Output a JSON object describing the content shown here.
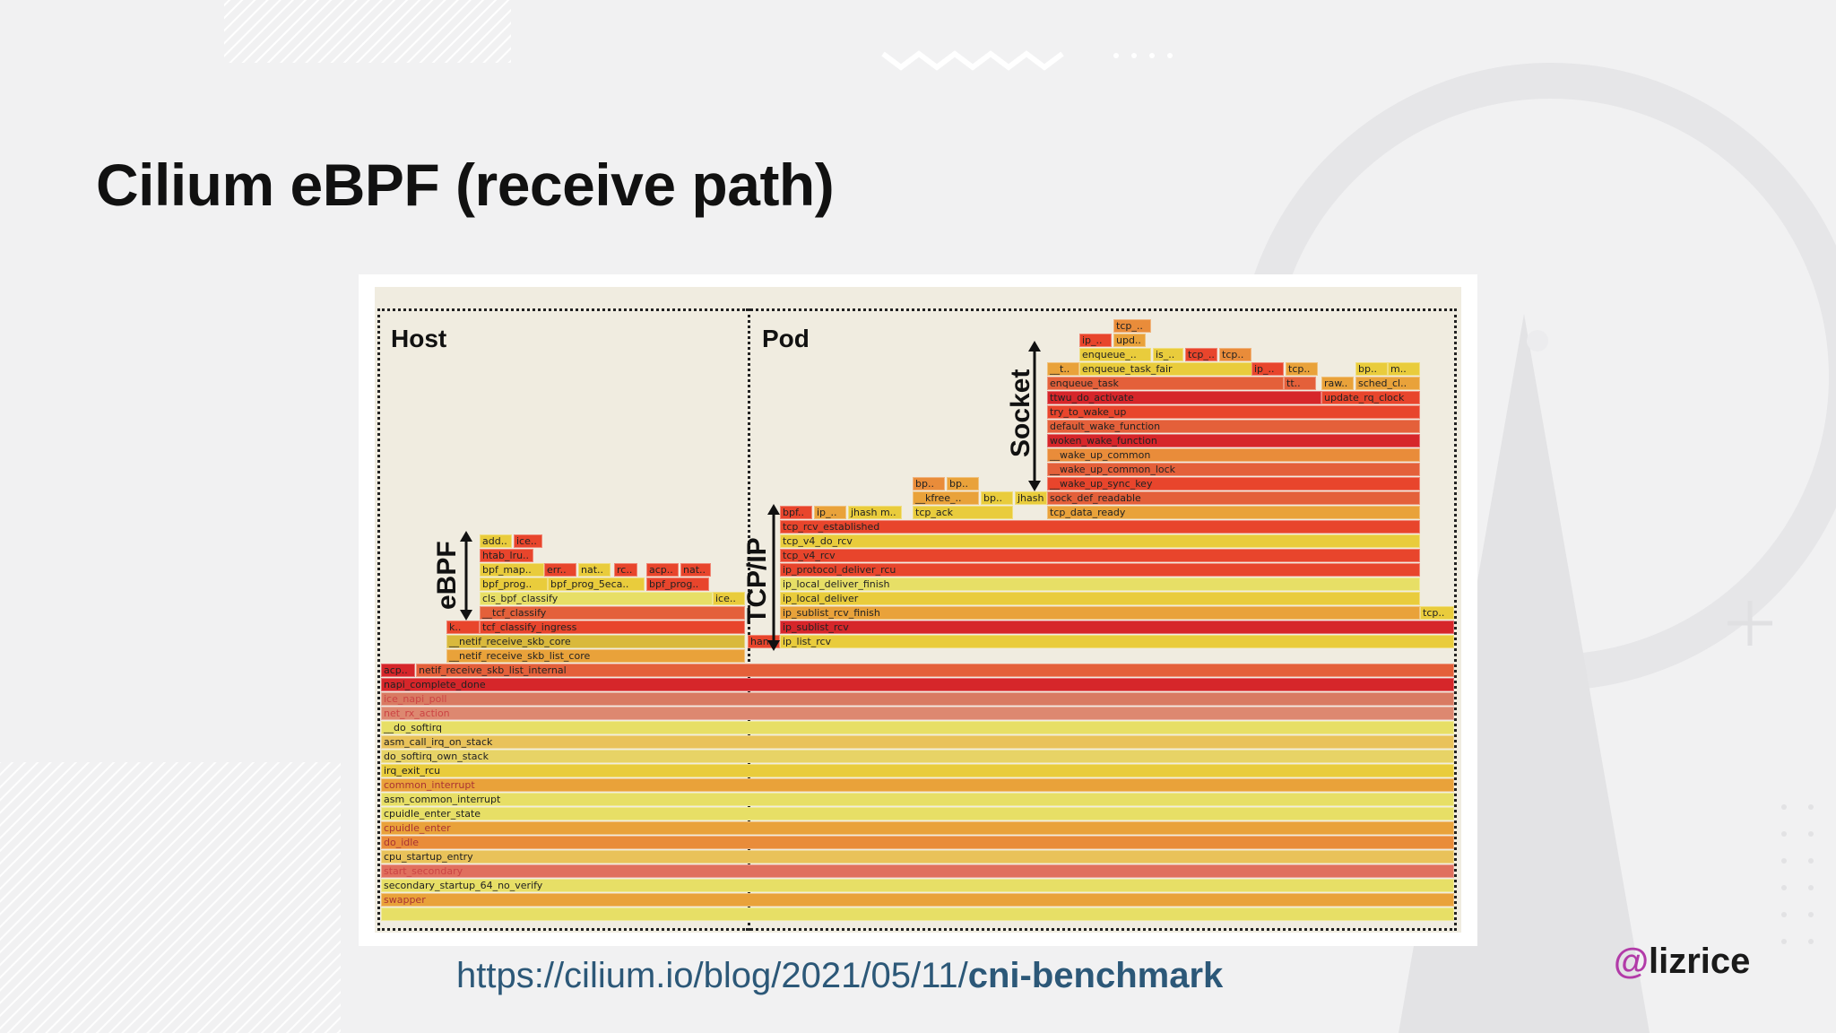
{
  "slide": {
    "title": "Cilium eBPF (receive path)",
    "url_prefix": "https://cilium.io/blog/2021/05/11/",
    "url_bold": "cni-benchmark",
    "handle_at": "@",
    "handle_name": "lizrice"
  },
  "diagram": {
    "region_host": "Host",
    "region_pod": "Pod",
    "label_ebpf": "eBPF",
    "label_tcpip": "TCP/IP",
    "label_socket": "Socket",
    "colors": {
      "dark_red": "#d6262a",
      "red": "#e8452c",
      "orange_red": "#e4603a",
      "orange": "#e98c3a",
      "amber": "#e9a23a",
      "yellow": "#e9cc3c",
      "pale_yellow": "#e7df66",
      "salmon": "#d97a62",
      "pink": "#e0705e"
    }
  },
  "host_bars": [
    "acp..",
    "netif_receive_skb_list_internal",
    "napi_complete_done",
    "ice_napi_poll",
    "net_rx_action",
    "__do_softirq",
    "asm_call_irq_on_stack",
    "do_softirq_own_stack",
    "irq_exit_rcu",
    "common_interrupt",
    "asm_common_interrupt",
    "cpuidle_enter_state",
    "cpuidle_enter",
    "do_idle",
    "cpu_startup_entry",
    "start_secondary",
    "secondary_startup_64_no_verify",
    "swapper"
  ],
  "host_stack": [
    "add..",
    "ice..",
    "htab_lru..",
    "bpf_map..",
    "err..",
    "nat..",
    "rc..",
    "acp..",
    "nat..",
    "bpf_prog..",
    "bpf_prog_5eca..",
    "bpf_prog..",
    "cls_bpf_classify",
    "ice..",
    "__tcf_classify",
    "k..",
    "tcf_classify_ingress",
    "__netif_receive_skb_core",
    "__netif_receive_skb_list_core"
  ],
  "pod_stack": [
    "tcp_..",
    "ip_..",
    "upd..",
    "enqueue_..",
    "is_..",
    "tcp_..",
    "tcp..",
    "__t..",
    "enqueue_task_fair",
    "ip_..",
    "tcp..",
    "bp..",
    "m..",
    "enqueue_task",
    "tt..",
    "raw..",
    "sched_cl..",
    "ttwu_do_activate",
    "update_rq_clock",
    "try_to_wake_up",
    "default_wake_function",
    "woken_wake_function",
    "__wake_up_common",
    "__wake_up_common_lock",
    "__wake_up_sync_key",
    "bp..",
    "bp..",
    "__kfree_..",
    "bp..",
    "jhash",
    "sock_def_readable",
    "bpf..",
    "ip_..",
    "jhash m..",
    "tcp_ack",
    "tcp_data_ready",
    "tcp_rcv_established",
    "tcp_v4_do_rcv",
    "tcp_v4_rcv",
    "ip_protocol_deliver_rcu",
    "ip_local_deliver_finish",
    "ip_local_deliver",
    "ip_sublist_rcv_finish",
    "tcp..",
    "ip_sublist_rcv",
    "han..",
    "ip_list_rcv"
  ]
}
